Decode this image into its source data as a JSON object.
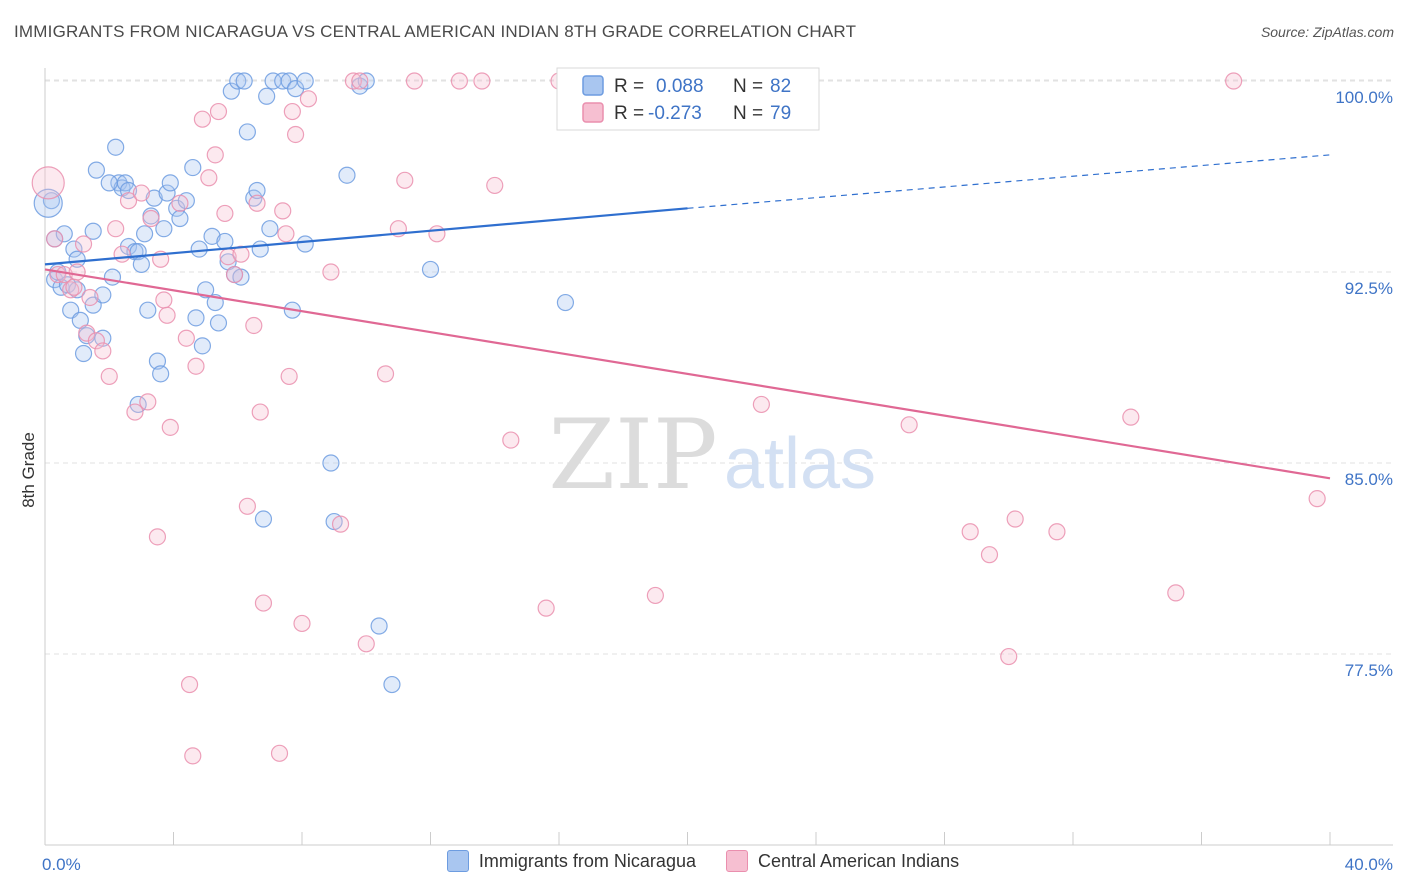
{
  "header": {
    "title": "IMMIGRANTS FROM NICARAGUA VS CENTRAL AMERICAN INDIAN 8TH GRADE CORRELATION CHART",
    "source": "Source: ZipAtlas.com"
  },
  "watermark": {
    "zip": "ZIP",
    "atlas": "atlas"
  },
  "colors": {
    "blue": "#6d9ce0",
    "blue_fill": "#a9c6f0",
    "blue_line": "#2f6fcf",
    "pink": "#ea8fae",
    "pink_fill": "#f6bfd1",
    "pink_line": "#e06894",
    "axis_text": "#3f74c6",
    "grid": "#e2e2e2"
  },
  "chart_data": {
    "type": "scatter",
    "xlabel": "",
    "ylabel": "8th Grade",
    "xlim": [
      0,
      40
    ],
    "ylim": [
      72,
      101
    ],
    "x_tick_labels": [
      {
        "value": 0,
        "label": "0.0%"
      },
      {
        "value": 40,
        "label": "40.0%"
      }
    ],
    "y_ticks": [
      {
        "value": 77.5,
        "label": "77.5%"
      },
      {
        "value": 85.0,
        "label": "85.0%"
      },
      {
        "value": 92.5,
        "label": "92.5%"
      },
      {
        "value": 100.0,
        "label": "100.0%"
      }
    ],
    "grid": true,
    "legend_position": "top-center",
    "stats_legend": [
      {
        "series": "Immigrants from Nicaragua",
        "r_label": "R = ",
        "r": "0.088",
        "n_label": "N = ",
        "n": "82"
      },
      {
        "series": "Central American Indians",
        "r_label": "R = ",
        "r": "-0.273",
        "n_label": "N = ",
        "n": "79"
      }
    ],
    "series": [
      {
        "name": "Immigrants from Nicaragua",
        "color": "blue",
        "trend": {
          "x": [
            0,
            20,
            40
          ],
          "y": [
            92.8,
            95.0,
            97.1
          ],
          "solid_until": 20
        },
        "points": [
          [
            0.2,
            95.3
          ],
          [
            0.3,
            93.8
          ],
          [
            0.3,
            92.2
          ],
          [
            0.4,
            92.5
          ],
          [
            0.5,
            91.9
          ],
          [
            0.6,
            94.0
          ],
          [
            0.7,
            92.0
          ],
          [
            0.8,
            91.0
          ],
          [
            0.9,
            93.4
          ],
          [
            1.0,
            93.0
          ],
          [
            1.0,
            91.8
          ],
          [
            1.1,
            90.6
          ],
          [
            1.2,
            89.3
          ],
          [
            1.3,
            90.0
          ],
          [
            1.5,
            94.1
          ],
          [
            1.5,
            91.2
          ],
          [
            1.6,
            96.5
          ],
          [
            1.8,
            91.6
          ],
          [
            1.8,
            89.9
          ],
          [
            2.1,
            92.3
          ],
          [
            2.2,
            97.4
          ],
          [
            2.3,
            96.0
          ],
          [
            2.4,
            95.8
          ],
          [
            2.5,
            96.0
          ],
          [
            2.6,
            93.5
          ],
          [
            2.6,
            95.7
          ],
          [
            2.8,
            93.3
          ],
          [
            2.9,
            87.3
          ],
          [
            2.9,
            93.3
          ],
          [
            3.0,
            92.8
          ],
          [
            3.1,
            94.0
          ],
          [
            3.2,
            91.0
          ],
          [
            3.3,
            94.7
          ],
          [
            3.4,
            95.4
          ],
          [
            3.5,
            89.0
          ],
          [
            3.6,
            88.5
          ],
          [
            3.7,
            94.2
          ],
          [
            3.8,
            95.6
          ],
          [
            3.9,
            96.0
          ],
          [
            4.1,
            95.0
          ],
          [
            4.2,
            94.6
          ],
          [
            4.4,
            95.3
          ],
          [
            4.6,
            96.6
          ],
          [
            4.7,
            90.7
          ],
          [
            4.8,
            93.4
          ],
          [
            4.9,
            89.6
          ],
          [
            5.0,
            91.8
          ],
          [
            5.2,
            93.9
          ],
          [
            5.3,
            91.3
          ],
          [
            5.4,
            90.5
          ],
          [
            5.6,
            93.7
          ],
          [
            5.7,
            92.9
          ],
          [
            5.8,
            99.6
          ],
          [
            5.9,
            92.4
          ],
          [
            6.0,
            100.0
          ],
          [
            6.1,
            92.3
          ],
          [
            6.2,
            100.0
          ],
          [
            6.3,
            98.0
          ],
          [
            6.5,
            95.4
          ],
          [
            6.6,
            95.7
          ],
          [
            6.7,
            93.4
          ],
          [
            6.8,
            82.8
          ],
          [
            6.9,
            99.4
          ],
          [
            7.0,
            94.2
          ],
          [
            7.1,
            100.0
          ],
          [
            7.4,
            100.0
          ],
          [
            7.6,
            100.0
          ],
          [
            7.7,
            91.0
          ],
          [
            7.8,
            99.7
          ],
          [
            8.1,
            100.0
          ],
          [
            8.1,
            93.6
          ],
          [
            8.9,
            85.0
          ],
          [
            9.0,
            82.7
          ],
          [
            9.4,
            96.3
          ],
          [
            9.8,
            99.8
          ],
          [
            10.0,
            100.0
          ],
          [
            10.4,
            78.6
          ],
          [
            10.8,
            76.3
          ],
          [
            12.0,
            92.6
          ],
          [
            16.2,
            91.3
          ],
          [
            0.1,
            95.2
          ],
          [
            2.0,
            96.0
          ]
        ],
        "sizes": {
          "default": 8,
          "large": [
            [
              80,
              14
            ]
          ]
        }
      },
      {
        "name": "Central American Indians",
        "color": "pink",
        "trend": {
          "x": [
            0,
            40
          ],
          "y": [
            92.6,
            84.4
          ],
          "solid_until": 40
        },
        "points": [
          [
            0.1,
            96.0
          ],
          [
            0.3,
            93.8
          ],
          [
            0.4,
            92.4
          ],
          [
            0.6,
            92.4
          ],
          [
            0.8,
            91.8
          ],
          [
            0.9,
            91.9
          ],
          [
            1.0,
            92.5
          ],
          [
            1.2,
            93.6
          ],
          [
            1.3,
            90.1
          ],
          [
            1.4,
            91.5
          ],
          [
            1.6,
            89.8
          ],
          [
            1.8,
            89.4
          ],
          [
            2.0,
            88.4
          ],
          [
            2.2,
            94.2
          ],
          [
            2.4,
            93.2
          ],
          [
            2.6,
            95.3
          ],
          [
            2.8,
            87.0
          ],
          [
            3.0,
            95.6
          ],
          [
            3.2,
            87.4
          ],
          [
            3.3,
            94.6
          ],
          [
            3.5,
            82.1
          ],
          [
            3.6,
            93.0
          ],
          [
            3.7,
            91.4
          ],
          [
            3.8,
            90.8
          ],
          [
            3.9,
            86.4
          ],
          [
            4.2,
            95.2
          ],
          [
            4.4,
            89.9
          ],
          [
            4.5,
            76.3
          ],
          [
            4.6,
            73.5
          ],
          [
            4.7,
            88.8
          ],
          [
            4.9,
            98.5
          ],
          [
            5.1,
            96.2
          ],
          [
            5.3,
            97.1
          ],
          [
            5.4,
            98.8
          ],
          [
            5.6,
            94.8
          ],
          [
            5.7,
            93.1
          ],
          [
            5.9,
            92.4
          ],
          [
            6.1,
            93.2
          ],
          [
            6.3,
            83.3
          ],
          [
            6.5,
            90.4
          ],
          [
            6.6,
            95.2
          ],
          [
            6.7,
            87.0
          ],
          [
            6.8,
            79.5
          ],
          [
            7.3,
            73.6
          ],
          [
            7.4,
            94.9
          ],
          [
            7.5,
            94.0
          ],
          [
            7.6,
            88.4
          ],
          [
            7.7,
            98.8
          ],
          [
            7.8,
            97.9
          ],
          [
            8.0,
            78.7
          ],
          [
            8.2,
            99.3
          ],
          [
            8.9,
            92.5
          ],
          [
            9.2,
            82.6
          ],
          [
            9.6,
            100.0
          ],
          [
            9.8,
            100.0
          ],
          [
            10.0,
            77.9
          ],
          [
            10.6,
            88.5
          ],
          [
            11.0,
            94.2
          ],
          [
            11.2,
            96.1
          ],
          [
            11.5,
            100.0
          ],
          [
            12.2,
            94.0
          ],
          [
            12.9,
            100.0
          ],
          [
            13.6,
            100.0
          ],
          [
            14.0,
            95.9
          ],
          [
            14.5,
            85.9
          ],
          [
            15.6,
            79.3
          ],
          [
            16.0,
            100.0
          ],
          [
            19.0,
            79.8
          ],
          [
            22.3,
            87.3
          ],
          [
            26.9,
            86.5
          ],
          [
            28.8,
            82.3
          ],
          [
            29.4,
            81.4
          ],
          [
            30.0,
            77.4
          ],
          [
            30.2,
            82.8
          ],
          [
            31.5,
            82.3
          ],
          [
            33.8,
            86.8
          ],
          [
            35.2,
            79.9
          ],
          [
            37.0,
            100.0
          ],
          [
            39.6,
            83.6
          ]
        ],
        "sizes": {
          "default": 8,
          "large": [
            [
              0,
              16
            ]
          ]
        }
      }
    ]
  },
  "bottom_legend": [
    {
      "label": "Immigrants from Nicaragua",
      "color": "blue"
    },
    {
      "label": "Central American Indians",
      "color": "pink"
    }
  ]
}
